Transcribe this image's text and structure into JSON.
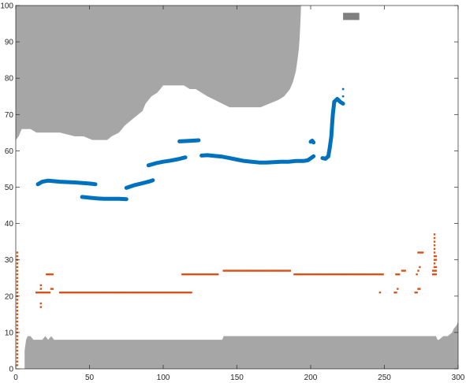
{
  "chart_data": {
    "type": "scatter",
    "title": "",
    "xlabel": "",
    "ylabel": "",
    "xlim": [
      0,
      300
    ],
    "ylim": [
      0,
      100
    ],
    "xticks": [
      0,
      50,
      100,
      150,
      200,
      250,
      300
    ],
    "yticks": [
      0,
      10,
      20,
      30,
      40,
      50,
      60,
      70,
      80,
      90,
      100
    ],
    "grid": false,
    "legend": "none",
    "colors": {
      "obstacle": "#a6a6a6",
      "obstacle_small": "#808080",
      "blue_series": "#0072bd",
      "orange_series": "#d95319",
      "axes": "#262626"
    },
    "regions": [
      {
        "name": "upper-obstacle",
        "polygon": [
          [
            0,
            100
          ],
          [
            0,
            63
          ],
          [
            2,
            64
          ],
          [
            4,
            66
          ],
          [
            10,
            66
          ],
          [
            14,
            65
          ],
          [
            20,
            65
          ],
          [
            26,
            65
          ],
          [
            30,
            65
          ],
          [
            40,
            64
          ],
          [
            46,
            64
          ],
          [
            52,
            63
          ],
          [
            60,
            63
          ],
          [
            62,
            63
          ],
          [
            65,
            64
          ],
          [
            70,
            65
          ],
          [
            74,
            67
          ],
          [
            80,
            69
          ],
          [
            86,
            71
          ],
          [
            88,
            73
          ],
          [
            90,
            74
          ],
          [
            92,
            75
          ],
          [
            96,
            76
          ],
          [
            98,
            77
          ],
          [
            100,
            78
          ],
          [
            108,
            78
          ],
          [
            114,
            78
          ],
          [
            118,
            77
          ],
          [
            122,
            77
          ],
          [
            126,
            76
          ],
          [
            130,
            75
          ],
          [
            135,
            74
          ],
          [
            140,
            73
          ],
          [
            145,
            72
          ],
          [
            150,
            72
          ],
          [
            160,
            72
          ],
          [
            166,
            72
          ],
          [
            172,
            73
          ],
          [
            178,
            74
          ],
          [
            182,
            75
          ],
          [
            184,
            76
          ],
          [
            186,
            77
          ],
          [
            188,
            79
          ],
          [
            190,
            82
          ],
          [
            191,
            85
          ],
          [
            192,
            88
          ],
          [
            192.5,
            91
          ],
          [
            193,
            95
          ],
          [
            193.5,
            100
          ]
        ]
      },
      {
        "name": "lower-obstacle",
        "polygon": [
          [
            6,
            0
          ],
          [
            6,
            5
          ],
          [
            7,
            8
          ],
          [
            8,
            9
          ],
          [
            10,
            9
          ],
          [
            12,
            8
          ],
          [
            15,
            8
          ],
          [
            18,
            8
          ],
          [
            20,
            9
          ],
          [
            22,
            8
          ],
          [
            24,
            9
          ],
          [
            26,
            8
          ],
          [
            30,
            8
          ],
          [
            60,
            8
          ],
          [
            100,
            8
          ],
          [
            130,
            8
          ],
          [
            140,
            8
          ],
          [
            141,
            9
          ],
          [
            150,
            9
          ],
          [
            200,
            9
          ],
          [
            250,
            9
          ],
          [
            285,
            9
          ],
          [
            286,
            8
          ],
          [
            287,
            8
          ],
          [
            290,
            9
          ],
          [
            293,
            9
          ],
          [
            296,
            10
          ],
          [
            297,
            11
          ],
          [
            299,
            12
          ],
          [
            300,
            13
          ],
          [
            300,
            0
          ]
        ]
      },
      {
        "name": "small-obstacle",
        "polygon": [
          [
            222,
            96
          ],
          [
            233,
            96
          ],
          [
            233,
            98
          ],
          [
            222,
            98
          ]
        ]
      }
    ],
    "series": [
      {
        "type": "curve",
        "segments": [
          {
            "x": [
              15,
              18,
              22,
              30,
              40,
              50,
              54
            ],
            "y": [
              50.8,
              51.5,
              51.8,
              51.5,
              51.3,
              51.0,
              50.8
            ]
          },
          {
            "x": [
              45,
              50,
              55,
              60,
              65,
              70,
              75
            ],
            "y": [
              47.3,
              47.1,
              46.9,
              46.8,
              46.8,
              46.8,
              46.7
            ]
          },
          {
            "x": [
              75,
              80,
              85,
              90,
              93
            ],
            "y": [
              49.8,
              50.5,
              51.0,
              51.5,
              51.9
            ]
          },
          {
            "x": [
              90,
              95,
              100,
              105,
              110,
              115
            ],
            "y": [
              56.0,
              56.6,
              57.0,
              57.3,
              57.7,
              58.2
            ]
          },
          {
            "x": [
              111,
              115,
              120,
              124
            ],
            "y": [
              62.6,
              62.7,
              62.8,
              62.9
            ]
          },
          {
            "x": [
              126,
              130,
              135,
              140,
              145,
              150,
              155,
              160,
              165,
              170,
              175,
              180,
              185,
              190,
              195,
              198,
              202
            ],
            "y": [
              58.7,
              58.8,
              58.6,
              58.4,
              58.0,
              57.6,
              57.2,
              57.0,
              56.8,
              56.8,
              56.9,
              57.0,
              57.0,
              57.2,
              57.2,
              57.4,
              58.5
            ]
          },
          {
            "x": [
              200,
              201,
              202
            ],
            "y": [
              62.5,
              62.8,
              62.3
            ]
          },
          {
            "x": [
              208,
              210,
              212,
              213,
              214,
              214.5,
              215,
              216,
              218,
              220,
              222
            ],
            "y": [
              58.0,
              57.8,
              58.5,
              61.0,
              64.0,
              67.0,
              70.0,
              73.5,
              74.3,
              73.5,
              73.0
            ]
          }
        ],
        "points": [
          [
            222,
            75
          ],
          [
            222,
            77
          ]
        ]
      },
      {
        "type": "points",
        "points": [
          [
            1,
            1
          ],
          [
            1,
            2
          ],
          [
            1,
            3
          ],
          [
            1,
            4
          ],
          [
            1,
            5
          ],
          [
            1,
            6
          ],
          [
            1,
            7
          ],
          [
            1,
            8
          ],
          [
            1,
            9
          ],
          [
            1,
            10
          ],
          [
            1,
            11
          ],
          [
            1,
            12
          ],
          [
            1,
            13
          ],
          [
            1,
            14
          ],
          [
            1,
            15
          ],
          [
            1,
            16
          ],
          [
            1,
            17
          ],
          [
            1,
            18
          ],
          [
            1,
            19
          ],
          [
            1,
            20
          ],
          [
            1,
            21
          ],
          [
            1,
            22
          ],
          [
            1,
            23
          ],
          [
            1,
            24
          ],
          [
            1,
            25
          ],
          [
            1,
            26
          ],
          [
            1,
            27
          ],
          [
            1,
            28
          ],
          [
            1,
            29
          ],
          [
            1,
            30
          ],
          [
            1,
            31
          ],
          [
            1,
            32
          ],
          [
            14,
            21
          ],
          [
            15,
            21
          ],
          [
            16,
            21
          ],
          [
            17,
            21
          ],
          [
            18,
            21
          ],
          [
            19,
            21
          ],
          [
            20,
            21
          ],
          [
            17,
            17
          ],
          [
            17,
            18
          ],
          [
            17,
            22
          ],
          [
            17,
            23
          ],
          [
            21,
            21
          ],
          [
            22,
            21
          ],
          [
            23,
            21
          ],
          [
            24,
            22
          ],
          [
            25,
            22
          ],
          [
            21,
            26
          ],
          [
            22,
            26
          ],
          [
            23,
            26
          ],
          [
            24,
            26
          ],
          [
            25,
            26
          ],
          [
            30,
            21
          ],
          [
            35,
            21
          ],
          [
            40,
            21
          ],
          [
            45,
            21
          ],
          [
            50,
            21
          ],
          [
            55,
            21
          ],
          [
            60,
            21
          ],
          [
            65,
            21
          ],
          [
            70,
            21
          ],
          [
            75,
            21
          ],
          [
            80,
            21
          ],
          [
            85,
            21
          ],
          [
            90,
            21
          ],
          [
            95,
            21
          ],
          [
            100,
            21
          ],
          [
            105,
            21
          ],
          [
            110,
            21
          ],
          [
            115,
            21
          ],
          [
            119,
            21
          ],
          [
            113,
            26
          ],
          [
            118,
            26
          ],
          [
            123,
            26
          ],
          [
            128,
            26
          ],
          [
            133,
            26
          ],
          [
            137,
            26
          ],
          [
            141,
            27
          ],
          [
            146,
            27
          ],
          [
            151,
            27
          ],
          [
            156,
            27
          ],
          [
            161,
            27
          ],
          [
            166,
            27
          ],
          [
            171,
            27
          ],
          [
            176,
            27
          ],
          [
            181,
            27
          ],
          [
            186,
            27
          ],
          [
            189,
            26
          ],
          [
            194,
            26
          ],
          [
            199,
            26
          ],
          [
            204,
            26
          ],
          [
            209,
            26
          ],
          [
            214,
            26
          ],
          [
            219,
            26
          ],
          [
            224,
            26
          ],
          [
            229,
            26
          ],
          [
            234,
            26
          ],
          [
            239,
            26
          ],
          [
            244,
            26
          ],
          [
            249,
            26
          ],
          [
            247,
            21
          ],
          [
            257,
            21
          ],
          [
            258,
            21
          ],
          [
            259,
            22
          ],
          [
            258,
            26
          ],
          [
            260,
            26
          ],
          [
            262,
            27
          ],
          [
            263,
            27
          ],
          [
            264,
            27
          ],
          [
            271,
            21
          ],
          [
            272,
            21
          ],
          [
            273,
            22
          ],
          [
            274,
            22
          ],
          [
            272,
            26
          ],
          [
            273,
            27
          ],
          [
            274,
            28
          ],
          [
            273,
            32
          ],
          [
            275,
            32
          ],
          [
            276,
            32
          ],
          [
            283,
            26
          ],
          [
            283,
            27
          ],
          [
            284,
            26
          ],
          [
            284,
            27
          ],
          [
            284,
            28
          ],
          [
            284,
            29
          ],
          [
            284,
            30
          ],
          [
            284,
            31
          ],
          [
            284,
            32
          ],
          [
            284,
            33
          ],
          [
            284,
            34
          ],
          [
            284,
            35
          ],
          [
            284,
            36
          ],
          [
            284,
            37
          ],
          [
            285,
            26
          ],
          [
            285,
            27
          ],
          [
            285,
            28
          ],
          [
            285,
            30
          ],
          [
            285,
            31
          ]
        ]
      }
    ]
  }
}
